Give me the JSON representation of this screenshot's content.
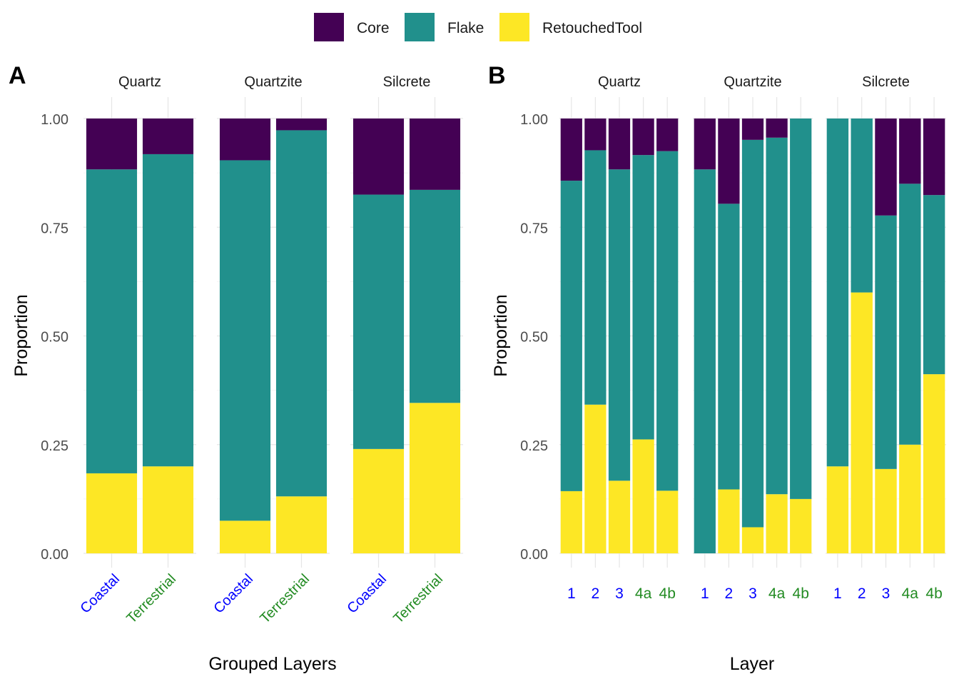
{
  "legend": {
    "entries": [
      {
        "label": "Core",
        "color": "#440154"
      },
      {
        "label": "Flake",
        "color": "#21908C"
      },
      {
        "label": "RetouchedTool",
        "color": "#FDE725"
      }
    ]
  },
  "group_colors": {
    "Coastal": "#0000FF",
    "Terrestrial": "#228B22"
  },
  "chart_data": [
    {
      "type": "bar",
      "stacked": true,
      "panel_tag": "A",
      "xlabel": "Grouped Layers",
      "ylabel": "Proportion",
      "ylim": [
        0,
        1
      ],
      "yticks": [
        "0.00",
        "0.25",
        "0.50",
        "0.75",
        "1.00"
      ],
      "facets": [
        {
          "title": "Quartz",
          "bars": [
            {
              "category": "Coastal",
              "group": "Coastal",
              "RetouchedTool": 0.184,
              "Flake": 0.699,
              "Core": 0.117
            },
            {
              "category": "Terrestrial",
              "group": "Terrestrial",
              "RetouchedTool": 0.2,
              "Flake": 0.718,
              "Core": 0.082
            }
          ]
        },
        {
          "title": "Quartzite",
          "bars": [
            {
              "category": "Coastal",
              "group": "Coastal",
              "RetouchedTool": 0.075,
              "Flake": 0.829,
              "Core": 0.096
            },
            {
              "category": "Terrestrial",
              "group": "Terrestrial",
              "RetouchedTool": 0.131,
              "Flake": 0.842,
              "Core": 0.027
            }
          ]
        },
        {
          "title": "Silcrete",
          "bars": [
            {
              "category": "Coastal",
              "group": "Coastal",
              "RetouchedTool": 0.24,
              "Flake": 0.585,
              "Core": 0.175
            },
            {
              "category": "Terrestrial",
              "group": "Terrestrial",
              "RetouchedTool": 0.346,
              "Flake": 0.49,
              "Core": 0.164
            }
          ]
        }
      ]
    },
    {
      "type": "bar",
      "stacked": true,
      "panel_tag": "B",
      "xlabel": "Layer",
      "ylabel": "Proportion",
      "ylim": [
        0,
        1
      ],
      "yticks": [
        "0.00",
        "0.25",
        "0.50",
        "0.75",
        "1.00"
      ],
      "facets": [
        {
          "title": "Quartz",
          "bars": [
            {
              "category": "1",
              "group": "Coastal",
              "RetouchedTool": 0.143,
              "Flake": 0.714,
              "Core": 0.143
            },
            {
              "category": "2",
              "group": "Coastal",
              "RetouchedTool": 0.342,
              "Flake": 0.585,
              "Core": 0.073
            },
            {
              "category": "3",
              "group": "Coastal",
              "RetouchedTool": 0.167,
              "Flake": 0.716,
              "Core": 0.117
            },
            {
              "category": "4a",
              "group": "Terrestrial",
              "RetouchedTool": 0.262,
              "Flake": 0.654,
              "Core": 0.084
            },
            {
              "category": "4b",
              "group": "Terrestrial",
              "RetouchedTool": 0.144,
              "Flake": 0.781,
              "Core": 0.075
            }
          ]
        },
        {
          "title": "Quartzite",
          "bars": [
            {
              "category": "1",
              "group": "Coastal",
              "RetouchedTool": 0.0,
              "Flake": 0.883,
              "Core": 0.117
            },
            {
              "category": "2",
              "group": "Coastal",
              "RetouchedTool": 0.147,
              "Flake": 0.657,
              "Core": 0.196
            },
            {
              "category": "3",
              "group": "Coastal",
              "RetouchedTool": 0.06,
              "Flake": 0.891,
              "Core": 0.049
            },
            {
              "category": "4a",
              "group": "Terrestrial",
              "RetouchedTool": 0.136,
              "Flake": 0.82,
              "Core": 0.044
            },
            {
              "category": "4b",
              "group": "Terrestrial",
              "RetouchedTool": 0.125,
              "Flake": 0.875,
              "Core": 0.0
            }
          ]
        },
        {
          "title": "Silcrete",
          "bars": [
            {
              "category": "1",
              "group": "Coastal",
              "RetouchedTool": 0.2,
              "Flake": 0.8,
              "Core": 0.0
            },
            {
              "category": "2",
              "group": "Coastal",
              "RetouchedTool": 0.6,
              "Flake": 0.4,
              "Core": 0.0
            },
            {
              "category": "3",
              "group": "Coastal",
              "RetouchedTool": 0.194,
              "Flake": 0.583,
              "Core": 0.223
            },
            {
              "category": "4a",
              "group": "Terrestrial",
              "RetouchedTool": 0.25,
              "Flake": 0.6,
              "Core": 0.15
            },
            {
              "category": "4b",
              "group": "Terrestrial",
              "RetouchedTool": 0.412,
              "Flake": 0.412,
              "Core": 0.176
            }
          ]
        }
      ]
    }
  ]
}
